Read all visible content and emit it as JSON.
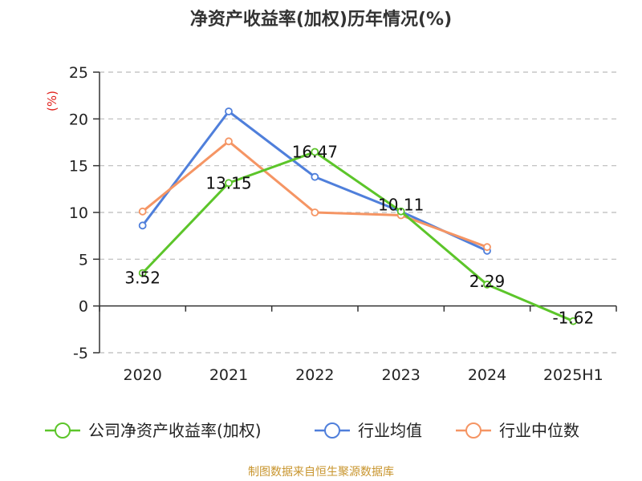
{
  "title": "净资产收益率(加权)历年情况(%)",
  "source": "制图数据来自恒生聚源数据库",
  "chart_data": {
    "type": "line",
    "title": "净资产收益率(加权)历年情况(%)",
    "ylabel": "(%)",
    "xlabel": "",
    "categories": [
      "2020",
      "2021",
      "2022",
      "2023",
      "2024",
      "2025H1"
    ],
    "ylim": [
      -5,
      25
    ],
    "yticks": [
      -5,
      0,
      5,
      10,
      15,
      20,
      25
    ],
    "grid": true,
    "legend_position": "bottom",
    "series": [
      {
        "name": "公司净资产收益率(加权)",
        "color": "#5cc52a",
        "values": [
          3.52,
          13.15,
          16.47,
          10.11,
          2.29,
          -1.62
        ],
        "labels": [
          "3.52",
          "13.15",
          "16.47",
          "10.11",
          "2.29",
          "-1.62"
        ]
      },
      {
        "name": "行业均值",
        "color": "#4f7fdb",
        "values": [
          8.6,
          20.8,
          13.8,
          10.1,
          5.9,
          null
        ]
      },
      {
        "name": "行业中位数",
        "color": "#f59564",
        "values": [
          10.1,
          17.6,
          10.0,
          9.7,
          6.3,
          null
        ]
      }
    ]
  }
}
